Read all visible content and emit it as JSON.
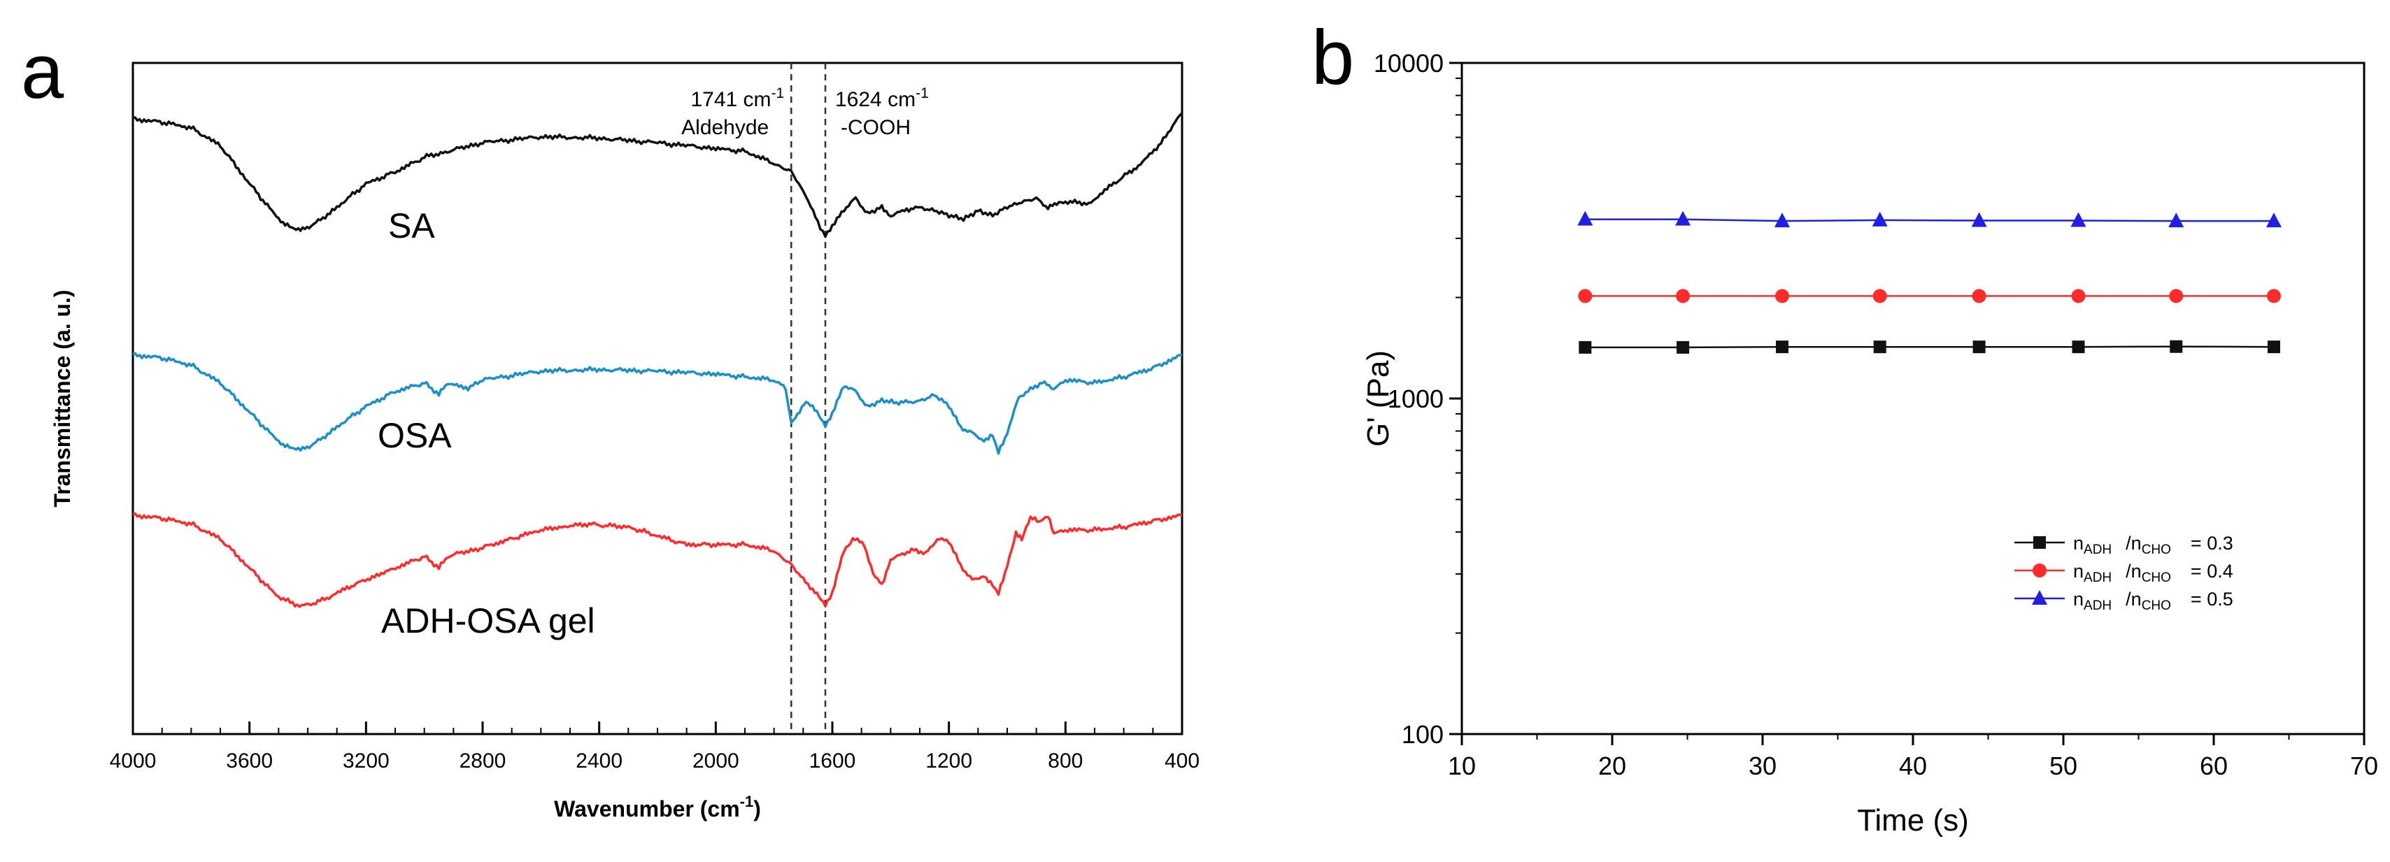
{
  "panels": {
    "a": {
      "label": "a"
    },
    "b": {
      "label": "b"
    }
  },
  "colors": {
    "black": "#111111",
    "red": "#ff2a2a",
    "blue": "#1f1fe6",
    "teal": "#1a8fc8",
    "axis": "#000000",
    "guide": "#333333"
  },
  "chart_data": [
    {
      "type": "line",
      "panel": "a",
      "title": "",
      "xlabel": "Wavenumber (cm",
      "xlabel_sup": "-1",
      "xlabel_end": ")",
      "ylabel": "Transmittance (a. u.)",
      "xlim": [
        4000,
        400
      ],
      "x_reversed": true,
      "yticks": "none",
      "xticks": [
        "4000",
        "3600",
        "3200",
        "2800",
        "2400",
        "2000",
        "1600",
        "1200",
        "800",
        "400"
      ],
      "reference_lines": [
        {
          "x": 1741,
          "value": "1741 cm",
          "sup": "-1",
          "note": "Aldehyde"
        },
        {
          "x": 1624,
          "value": "1624 cm",
          "sup": "-1",
          "note": "-COOH"
        }
      ],
      "series": [
        {
          "name": "SA",
          "color": "black",
          "points": [
            [
              4000,
              96
            ],
            [
              3900,
              94
            ],
            [
              3800,
              90
            ],
            [
              3700,
              78
            ],
            [
              3600,
              52
            ],
            [
              3500,
              28
            ],
            [
              3440,
              20
            ],
            [
              3380,
              24
            ],
            [
              3300,
              36
            ],
            [
              3200,
              52
            ],
            [
              3100,
              60
            ],
            [
              3000,
              70
            ],
            [
              2920,
              74
            ],
            [
              2800,
              80
            ],
            [
              2600,
              84
            ],
            [
              2400,
              83
            ],
            [
              2200,
              80
            ],
            [
              2000,
              76
            ],
            [
              1900,
              74
            ],
            [
              1800,
              66
            ],
            [
              1741,
              60
            ],
            [
              1690,
              44
            ],
            [
              1650,
              26
            ],
            [
              1624,
              16
            ],
            [
              1600,
              24
            ],
            [
              1560,
              34
            ],
            [
              1520,
              42
            ],
            [
              1480,
              32
            ],
            [
              1430,
              36
            ],
            [
              1400,
              30
            ],
            [
              1360,
              34
            ],
            [
              1300,
              36
            ],
            [
              1250,
              34
            ],
            [
              1200,
              30
            ],
            [
              1150,
              28
            ],
            [
              1100,
              34
            ],
            [
              1050,
              30
            ],
            [
              1000,
              36
            ],
            [
              950,
              40
            ],
            [
              900,
              42
            ],
            [
              860,
              36
            ],
            [
              800,
              40
            ],
            [
              720,
              38
            ],
            [
              650,
              50
            ],
            [
              550,
              64
            ],
            [
              480,
              78
            ],
            [
              400,
              100
            ]
          ]
        },
        {
          "name": "OSA",
          "color": "teal",
          "points": [
            [
              4000,
              63
            ],
            [
              3900,
              61
            ],
            [
              3800,
              56
            ],
            [
              3700,
              44
            ],
            [
              3600,
              24
            ],
            [
              3500,
              4
            ],
            [
              3440,
              -2
            ],
            [
              3380,
              2
            ],
            [
              3300,
              14
            ],
            [
              3200,
              28
            ],
            [
              3100,
              38
            ],
            [
              3000,
              44
            ],
            [
              2950,
              36
            ],
            [
              2920,
              44
            ],
            [
              2850,
              40
            ],
            [
              2800,
              46
            ],
            [
              2600,
              52
            ],
            [
              2400,
              53
            ],
            [
              2200,
              52
            ],
            [
              2000,
              50
            ],
            [
              1900,
              48
            ],
            [
              1800,
              46
            ],
            [
              1760,
              40
            ],
            [
              1741,
              16
            ],
            [
              1720,
              22
            ],
            [
              1690,
              32
            ],
            [
              1660,
              26
            ],
            [
              1624,
              14
            ],
            [
              1600,
              24
            ],
            [
              1560,
              42
            ],
            [
              1520,
              38
            ],
            [
              1480,
              28
            ],
            [
              1430,
              32
            ],
            [
              1380,
              30
            ],
            [
              1300,
              32
            ],
            [
              1250,
              36
            ],
            [
              1200,
              28
            ],
            [
              1160,
              14
            ],
            [
              1120,
              10
            ],
            [
              1080,
              4
            ],
            [
              1050,
              8
            ],
            [
              1030,
              -4
            ],
            [
              1000,
              10
            ],
            [
              960,
              34
            ],
            [
              920,
              40
            ],
            [
              880,
              44
            ],
            [
              840,
              40
            ],
            [
              800,
              46
            ],
            [
              700,
              44
            ],
            [
              600,
              48
            ],
            [
              500,
              54
            ],
            [
              400,
              63
            ]
          ]
        },
        {
          "name": "ADH-OSA gel",
          "color": "red",
          "points": [
            [
              4000,
              30
            ],
            [
              3900,
              28
            ],
            [
              3800,
              24
            ],
            [
              3700,
              14
            ],
            [
              3600,
              -6
            ],
            [
              3500,
              -26
            ],
            [
              3420,
              -32
            ],
            [
              3350,
              -28
            ],
            [
              3250,
              -18
            ],
            [
              3100,
              -6
            ],
            [
              3000,
              2
            ],
            [
              2950,
              -6
            ],
            [
              2920,
              2
            ],
            [
              2800,
              8
            ],
            [
              2700,
              14
            ],
            [
              2600,
              20
            ],
            [
              2450,
              24
            ],
            [
              2300,
              22
            ],
            [
              2200,
              16
            ],
            [
              2100,
              10
            ],
            [
              2000,
              10
            ],
            [
              1900,
              10
            ],
            [
              1800,
              6
            ],
            [
              1741,
              -4
            ],
            [
              1700,
              -14
            ],
            [
              1660,
              -22
            ],
            [
              1624,
              -32
            ],
            [
              1600,
              -22
            ],
            [
              1560,
              6
            ],
            [
              1530,
              14
            ],
            [
              1490,
              10
            ],
            [
              1460,
              -10
            ],
            [
              1430,
              -18
            ],
            [
              1400,
              0
            ],
            [
              1360,
              4
            ],
            [
              1320,
              6
            ],
            [
              1280,
              4
            ],
            [
              1240,
              14
            ],
            [
              1200,
              12
            ],
            [
              1160,
              -4
            ],
            [
              1120,
              -14
            ],
            [
              1080,
              -12
            ],
            [
              1050,
              -18
            ],
            [
              1030,
              -24
            ],
            [
              1000,
              -4
            ],
            [
              970,
              18
            ],
            [
              950,
              14
            ],
            [
              920,
              28
            ],
            [
              890,
              26
            ],
            [
              860,
              30
            ],
            [
              840,
              18
            ],
            [
              800,
              20
            ],
            [
              700,
              20
            ],
            [
              600,
              22
            ],
            [
              500,
              26
            ],
            [
              400,
              30
            ]
          ]
        }
      ]
    },
    {
      "type": "line",
      "panel": "b",
      "title": "",
      "xlabel": "Time (s)",
      "ylabel": "G' (Pa)",
      "xlim": [
        10,
        70
      ],
      "ylim": [
        100,
        10000
      ],
      "yscale": "log",
      "xticks": [
        "10",
        "20",
        "30",
        "40",
        "50",
        "60",
        "70"
      ],
      "yticks": [
        "100",
        "1000",
        "10000"
      ],
      "x": [
        18.2,
        24.7,
        31.3,
        37.8,
        44.4,
        51.0,
        57.5,
        64.0
      ],
      "legend_position": "lower-right",
      "series": [
        {
          "name": "n",
          "sub1": "ADH",
          "slash": "/n",
          "sub2": "CHO",
          "eq": "= 0.3",
          "marker": "square",
          "color": "black",
          "values": [
            1420,
            1420,
            1425,
            1425,
            1425,
            1425,
            1428,
            1425
          ]
        },
        {
          "name": "n",
          "sub1": "ADH",
          "slash": "/n",
          "sub2": "CHO",
          "eq": "= 0.4",
          "marker": "circle",
          "color": "red",
          "values": [
            2020,
            2020,
            2020,
            2020,
            2020,
            2020,
            2020,
            2020
          ]
        },
        {
          "name": "n",
          "sub1": "ADH",
          "slash": "/n",
          "sub2": "CHO",
          "eq": "= 0.5",
          "marker": "triangle",
          "color": "blue",
          "values": [
            3420,
            3420,
            3380,
            3400,
            3390,
            3390,
            3380,
            3380
          ]
        }
      ]
    }
  ]
}
